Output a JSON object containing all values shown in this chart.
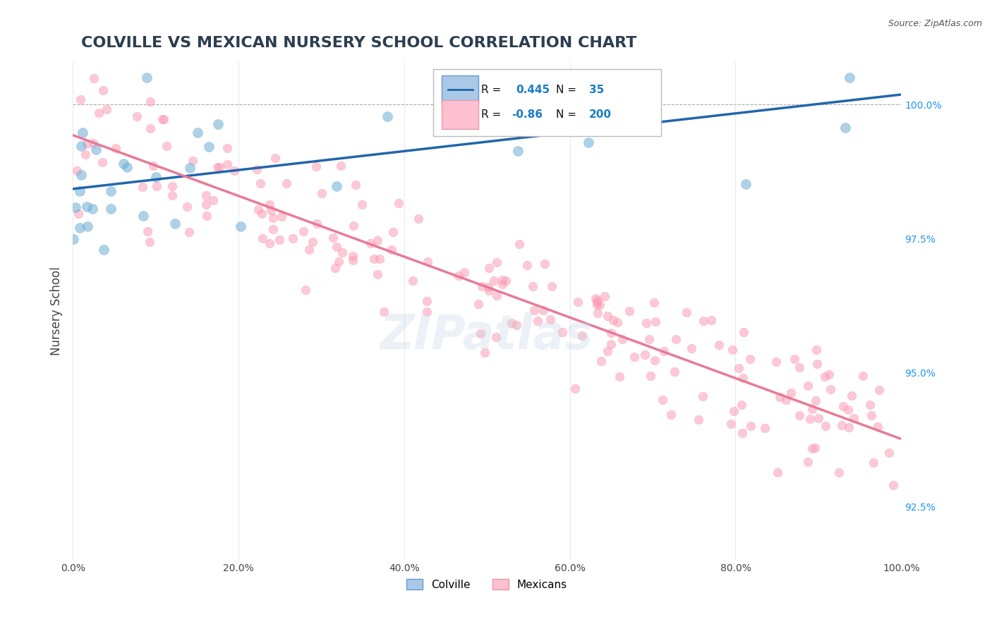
{
  "title": "COLVILLE VS MEXICAN NURSERY SCHOOL CORRELATION CHART",
  "source": "Source: ZipAtlas.com",
  "xlabel": "",
  "ylabel": "Nursery School",
  "legend_label_1": "Colville",
  "legend_label_2": "Mexicans",
  "R1": 0.445,
  "N1": 35,
  "R2": -0.86,
  "N2": 200,
  "color1": "#6baed6",
  "color2": "#fc9eb5",
  "line_color1": "#2166ac",
  "line_color2": "#e87a97",
  "x_min": 0.0,
  "x_max": 100.0,
  "y_min": 91.5,
  "y_max": 100.8,
  "right_yticks": [
    92.5,
    95.0,
    97.5,
    100.0
  ],
  "watermark": "ZIPatlas",
  "background_color": "#ffffff",
  "title_color": "#2c3e50",
  "source_color": "#555555"
}
